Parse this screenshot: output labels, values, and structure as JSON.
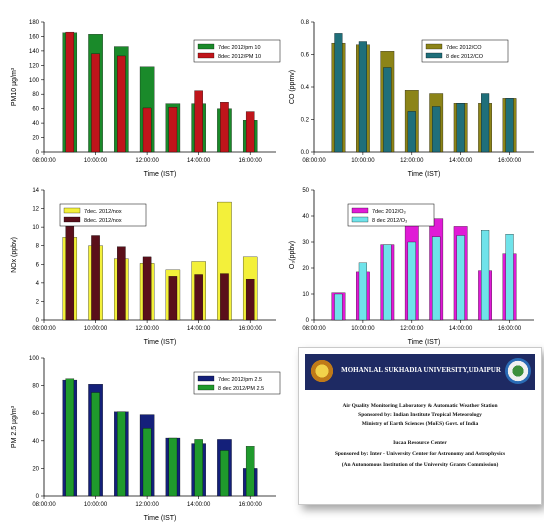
{
  "chart_data": [
    {
      "id": "pm10",
      "type": "bar",
      "ylabel": "PM10 µg/m³",
      "xlabel": "Time (IST)",
      "ylim": [
        0,
        180
      ],
      "yticks": [
        "0",
        "20",
        "40",
        "60",
        "80",
        "100",
        "120",
        "140",
        "160",
        "180"
      ],
      "xtick_labels": [
        "08:00:00",
        "10:00:00",
        "12:00:00",
        "14:00:00",
        "16:00:00"
      ],
      "categories": [
        "09:00",
        "10:00",
        "11:00",
        "12:00",
        "13:00",
        "14:00",
        "15:00",
        "16:00"
      ],
      "legend_position": "top-right",
      "series": [
        {
          "name": "7dec 2012/pm 10",
          "color": "#1a8a2a",
          "values": [
            165,
            163,
            146,
            118,
            67,
            67,
            60,
            44
          ]
        },
        {
          "name": "8dec 2012/PM 10",
          "color": "#c0151b",
          "values": [
            166,
            136,
            133,
            61,
            62,
            85,
            69,
            56
          ]
        }
      ]
    },
    {
      "id": "co",
      "type": "bar",
      "ylabel": "CO (ppmv)",
      "xlabel": "Time (IST)",
      "ylim": [
        0,
        0.8
      ],
      "yticks": [
        "0.0",
        "0.2",
        "0.4",
        "0.6",
        "0.8"
      ],
      "xtick_labels": [
        "08:00:00",
        "10:00:00",
        "12:00:00",
        "14:00:00",
        "16:00:00"
      ],
      "categories": [
        "09:00",
        "10:00",
        "11:00",
        "12:00",
        "13:00",
        "14:00",
        "15:00",
        "16:00"
      ],
      "legend_position": "top-right",
      "series": [
        {
          "name": "7dec 2012/CO",
          "color": "#8c8418",
          "values": [
            0.67,
            0.66,
            0.62,
            0.38,
            0.36,
            0.3,
            0.3,
            0.33
          ]
        },
        {
          "name": "8 dec 2012/CO",
          "color": "#1f6f7a",
          "values": [
            0.73,
            0.68,
            0.52,
            0.25,
            0.28,
            0.3,
            0.36,
            0.33
          ]
        }
      ]
    },
    {
      "id": "nox",
      "type": "bar",
      "ylabel": "NOx (ppbv)",
      "xlabel": "Time (IST)",
      "ylim": [
        0,
        14
      ],
      "yticks": [
        "0",
        "2",
        "4",
        "6",
        "8",
        "10",
        "12",
        "14"
      ],
      "xtick_labels": [
        "08:00:00",
        "10:00:00",
        "12:00:00",
        "14:00:00",
        "16:00:00"
      ],
      "categories": [
        "09:00",
        "10:00",
        "11:00",
        "12:00",
        "13:00",
        "14:00",
        "15:00",
        "16:00"
      ],
      "legend_position": "top-left",
      "series": [
        {
          "name": "7dec. 2012/nox",
          "color": "#f3f03a",
          "values": [
            8.9,
            8.0,
            6.6,
            6.1,
            5.4,
            6.3,
            12.7,
            6.8
          ]
        },
        {
          "name": "8dec. 2012/nox",
          "color": "#5a0f1a",
          "values": [
            10.1,
            9.1,
            7.9,
            6.8,
            4.7,
            4.9,
            5.0,
            4.4
          ]
        }
      ]
    },
    {
      "id": "o3",
      "type": "bar",
      "ylabel": "O₃(ppbv)",
      "xlabel": "Time (IST)",
      "ylim": [
        0,
        50
      ],
      "yticks": [
        "0",
        "10",
        "20",
        "30",
        "40",
        "50"
      ],
      "xtick_labels": [
        "08:00:00",
        "10:00:00",
        "12:00:00",
        "14:00:00",
        "16:00:00"
      ],
      "categories": [
        "09:00",
        "10:00",
        "11:00",
        "12:00",
        "13:00",
        "14:00",
        "15:00",
        "16:00"
      ],
      "legend_position": "top-left",
      "series": [
        {
          "name": "7dec 2012/O₃",
          "color": "#e01ad6",
          "values": [
            10.5,
            18.5,
            29.0,
            39.5,
            39.0,
            36.0,
            19.0,
            25.5
          ]
        },
        {
          "name": "8 dec 2012/O₃",
          "color": "#6fe3ea",
          "values": [
            10.0,
            22.0,
            29.0,
            30.0,
            32.0,
            32.5,
            34.5,
            33.0
          ]
        }
      ]
    },
    {
      "id": "pm25",
      "type": "bar",
      "ylabel": "PM 2.5 µg/m³",
      "xlabel": "Time (IST)",
      "ylim": [
        0,
        100
      ],
      "yticks": [
        "0",
        "20",
        "40",
        "60",
        "80",
        "100"
      ],
      "xtick_labels": [
        "08:00:00",
        "10:00:00",
        "12:00:00",
        "14:00:00",
        "16:00:00"
      ],
      "categories": [
        "09:00",
        "10:00",
        "11:00",
        "12:00",
        "13:00",
        "14:00",
        "15:00",
        "16:00"
      ],
      "legend_position": "top-right",
      "series": [
        {
          "name": "7dec 2012/pm 2.5",
          "color": "#14207a",
          "values": [
            84,
            81,
            61,
            59,
            42,
            38,
            41,
            20
          ]
        },
        {
          "name": "8 dec 2012/PM 2.5",
          "color": "#1f9a2c",
          "values": [
            85,
            75,
            61,
            49,
            42,
            41,
            33,
            36
          ]
        }
      ]
    }
  ],
  "info_card": {
    "title": "MOHANLAL SUKHADIA UNIVERSITY,UDAIPUR",
    "lines": [
      "Air Quality Monitoring Laboratory & Automatic Weather Station",
      "Sponsored by: Indian Institute Tropical Meteorology",
      "Ministry of Earth Sciences (MoES) Govt. of India",
      "Iucaa Resource Center",
      "Sponsored by:  Inter - University Center for Astronomy and Astrophysics",
      "(An Autonomous Institution of the University Grants Commission)"
    ]
  }
}
